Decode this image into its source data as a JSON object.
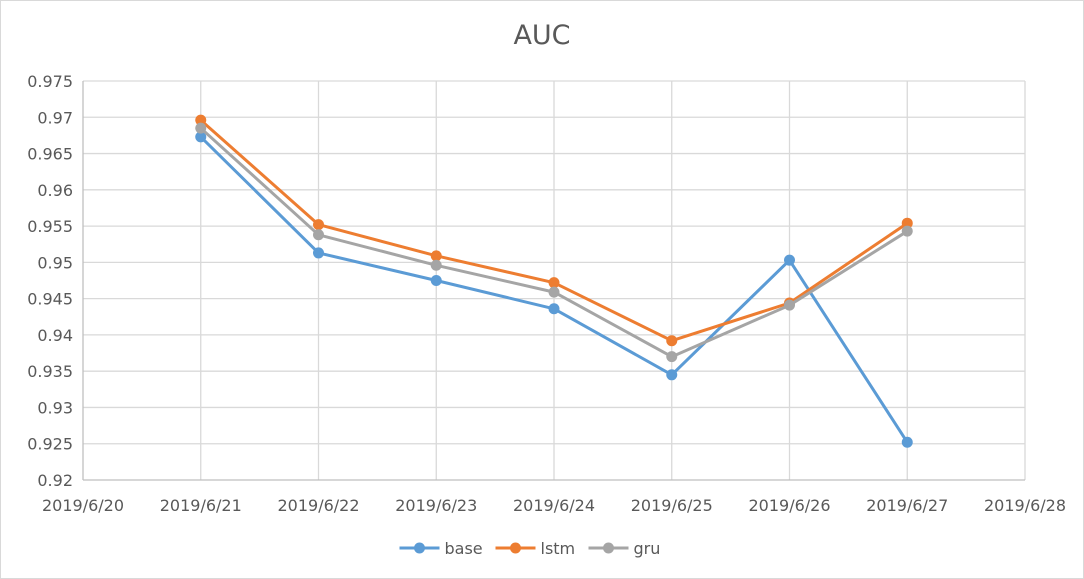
{
  "chart_data": {
    "type": "line",
    "title": "AUC",
    "xlabel": "",
    "ylabel": "",
    "x_ticks": [
      "2019/6/20",
      "2019/6/21",
      "2019/6/22",
      "2019/6/23",
      "2019/6/24",
      "2019/6/25",
      "2019/6/26",
      "2019/6/27",
      "2019/6/28"
    ],
    "x_range": [
      "2019/6/20",
      "2019/6/28"
    ],
    "ylim": [
      0.92,
      0.975
    ],
    "y_ticks": [
      "0.92",
      "0.925",
      "0.93",
      "0.935",
      "0.94",
      "0.945",
      "0.95",
      "0.955",
      "0.96",
      "0.965",
      "0.97",
      "0.975"
    ],
    "y_step": 0.005,
    "grid": true,
    "legend_position": "bottom",
    "x": [
      "2019/6/21",
      "2019/6/22",
      "2019/6/23",
      "2019/6/24",
      "2019/6/25",
      "2019/6/26",
      "2019/6/27"
    ],
    "series": [
      {
        "name": "base",
        "color": "#5b9bd5",
        "values": [
          0.9673,
          0.9513,
          0.9475,
          0.9436,
          0.9345,
          0.9503,
          0.9252
        ]
      },
      {
        "name": "lstm",
        "color": "#ed7d31",
        "values": [
          0.9696,
          0.9552,
          0.9509,
          0.9472,
          0.9392,
          0.9444,
          0.9554
        ]
      },
      {
        "name": "gru",
        "color": "#a5a5a5",
        "values": [
          0.9685,
          0.9538,
          0.9496,
          0.9459,
          0.937,
          0.9441,
          0.9543
        ]
      }
    ]
  }
}
